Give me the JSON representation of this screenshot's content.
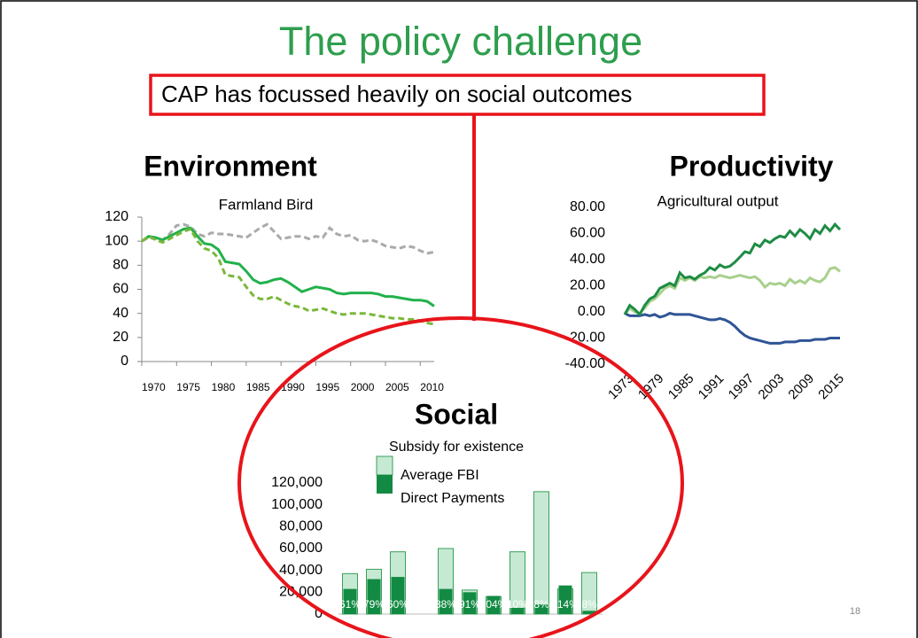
{
  "title": "The policy challenge",
  "subtitle": "CAP has focussed heavily on social outcomes",
  "slide_number": "18",
  "chart_data": [
    {
      "type": "line",
      "heading": "Environment",
      "title": "Farmland Bird",
      "x": [
        1970,
        1971,
        1972,
        1973,
        1974,
        1975,
        1976,
        1977,
        1978,
        1979,
        1980,
        1981,
        1982,
        1983,
        1984,
        1985,
        1986,
        1987,
        1988,
        1989,
        1990,
        1991,
        1992,
        1993,
        1994,
        1995,
        1996,
        1997,
        1998,
        1999,
        2000,
        2001,
        2002,
        2003,
        2004,
        2005,
        2006,
        2007,
        2008,
        2009,
        2010,
        2011,
        2012
      ],
      "xlim": [
        1970,
        2012
      ],
      "xticks": [
        1970,
        1975,
        1980,
        1985,
        1990,
        1995,
        2000,
        2005,
        2010
      ],
      "ylim": [
        0,
        120
      ],
      "yticks": [
        0,
        20,
        40,
        60,
        80,
        100,
        120
      ],
      "series": [
        {
          "color": "#aaaaaa",
          "dashed": true,
          "values": [
            100,
            103,
            102,
            101,
            106,
            113,
            114,
            112,
            106,
            104,
            107,
            106,
            106,
            105,
            104,
            103,
            107,
            111,
            114,
            108,
            102,
            103,
            104,
            104,
            102,
            104,
            103,
            111,
            106,
            104,
            105,
            101,
            100,
            101,
            99,
            96,
            95,
            94,
            96,
            95,
            92,
            90,
            91
          ]
        },
        {
          "color": "#22b14c",
          "dashed": false,
          "values": [
            100,
            104,
            103,
            101,
            104,
            107,
            110,
            111,
            104,
            98,
            97,
            93,
            83,
            82,
            81,
            75,
            68,
            65,
            66,
            68,
            69,
            66,
            62,
            58,
            60,
            62,
            61,
            60,
            57,
            56,
            57,
            57,
            57,
            57,
            56,
            54,
            54,
            53,
            52,
            51,
            51,
            50,
            46
          ]
        },
        {
          "color": "#7ab83a",
          "dashed": true,
          "values": [
            100,
            104,
            101,
            99,
            102,
            105,
            108,
            110,
            100,
            94,
            92,
            86,
            72,
            71,
            70,
            62,
            55,
            52,
            52,
            54,
            51,
            48,
            46,
            45,
            42,
            43,
            44,
            42,
            40,
            39,
            40,
            40,
            40,
            39,
            38,
            37,
            36,
            36,
            35,
            35,
            34,
            32,
            31
          ]
        }
      ]
    },
    {
      "type": "line",
      "heading": "Productivity",
      "title": "Agricultural output",
      "x": [
        1973,
        1974,
        1975,
        1976,
        1977,
        1978,
        1979,
        1980,
        1981,
        1982,
        1983,
        1984,
        1985,
        1986,
        1987,
        1988,
        1989,
        1990,
        1991,
        1992,
        1993,
        1994,
        1995,
        1996,
        1997,
        1998,
        1999,
        2000,
        2001,
        2002,
        2003,
        2004,
        2005,
        2006,
        2007,
        2008,
        2009,
        2010,
        2011,
        2012,
        2013,
        2014,
        2015,
        2016
      ],
      "xlim": [
        1973,
        2016
      ],
      "xticks": [
        1973,
        1979,
        1985,
        1991,
        1997,
        2003,
        2009,
        2015
      ],
      "ylim": [
        -40,
        80
      ],
      "yticks": [
        {
          "value": -40,
          "label": "-40.00"
        },
        {
          "value": -20,
          "label": "-20.00"
        },
        {
          "value": 0,
          "label": "0.00"
        },
        {
          "value": 20,
          "label": "20.00"
        },
        {
          "value": 40,
          "label": "40.00"
        },
        {
          "value": 60,
          "label": "60.00"
        },
        {
          "value": 80,
          "label": "80.00"
        }
      ],
      "series": [
        {
          "color": "#a8d08d",
          "dashed": false,
          "values": [
            -2,
            3,
            0,
            -1,
            3,
            8,
            10,
            14,
            18,
            20,
            18,
            26,
            24,
            26,
            24,
            27,
            26,
            27,
            26,
            28,
            27,
            26,
            27,
            28,
            27,
            26,
            27,
            24,
            19,
            22,
            21,
            22,
            20,
            25,
            22,
            24,
            22,
            26,
            24,
            23,
            26,
            33,
            34,
            31
          ]
        },
        {
          "color": "#2f5496",
          "dashed": false,
          "values": [
            -1,
            -3,
            -3,
            -3,
            -2,
            -3,
            -2,
            -4,
            -3,
            -1,
            -2,
            -2,
            -2,
            -2,
            -3,
            -4,
            -5,
            -6,
            -6,
            -5,
            -6,
            -8,
            -11,
            -15,
            -18,
            -20,
            -21,
            -22,
            -23,
            -24,
            -24,
            -24,
            -23,
            -23,
            -23,
            -22,
            -22,
            -22,
            -21,
            -21,
            -21,
            -20,
            -20,
            -20
          ]
        },
        {
          "color": "#1e8c45",
          "dashed": false,
          "values": [
            -2,
            5,
            2,
            -2,
            5,
            10,
            12,
            18,
            20,
            22,
            20,
            30,
            26,
            27,
            25,
            28,
            30,
            34,
            32,
            36,
            34,
            35,
            38,
            42,
            46,
            45,
            52,
            50,
            55,
            53,
            56,
            58,
            57,
            62,
            58,
            63,
            60,
            56,
            63,
            60,
            66,
            62,
            67,
            63
          ]
        }
      ]
    },
    {
      "type": "bar",
      "heading": "Social",
      "title": "Subsidy for existence",
      "categories": [
        null,
        null,
        null,
        null,
        null,
        null,
        null,
        null,
        null,
        null,
        null
      ],
      "ylim": [
        0,
        120000
      ],
      "yticks": [
        {
          "value": 0,
          "label": "0"
        },
        {
          "value": 20000,
          "label": "20,000"
        },
        {
          "value": 40000,
          "label": "40,000"
        },
        {
          "value": 60000,
          "label": "60,000"
        },
        {
          "value": 80000,
          "label": "80,000"
        },
        {
          "value": 100000,
          "label": "100,000"
        },
        {
          "value": 120000,
          "label": "120,000"
        }
      ],
      "series": [
        {
          "name": "Average FBI",
          "color": "#c6e9d3",
          "values": [
            37000,
            41000,
            57000,
            null,
            60000,
            22000,
            16000,
            57000,
            112000,
            23000,
            38000
          ]
        },
        {
          "name": "Direct Payments",
          "color": "#138a43",
          "values": [
            23000,
            32000,
            34000,
            null,
            23000,
            20000,
            16600,
            5700,
            9000,
            26200,
            3000
          ]
        }
      ],
      "share_labels": [
        "61%",
        "79%",
        "60%",
        null,
        "38%",
        "91%",
        "104%",
        "10%",
        "8%",
        "114%",
        "8%"
      ]
    }
  ]
}
